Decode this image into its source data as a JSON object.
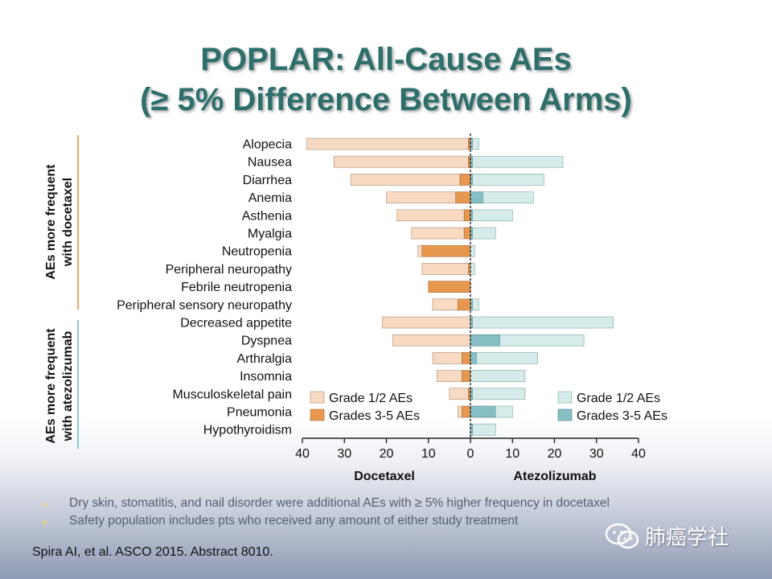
{
  "slide": {
    "title_line1": "POPLAR: All-Cause AEs",
    "title_line2": "(≥ 5% Difference Between Arms)",
    "group_labels": [
      {
        "line1": "AEs more frequent",
        "line2": "with docetaxel"
      },
      {
        "line1": "AEs more frequent",
        "line2": "with atezolizumab"
      }
    ],
    "bullets": [
      "Dry skin, stomatitis, and nail disorder were additional AEs with ≥ 5% higher frequency in docetaxel",
      "Safety population includes pts who received any amount of either study treatment"
    ],
    "citation": "Spira AI, et al. ASCO 2015. Abstract 8010.",
    "watermark": "肺癌学社"
  },
  "colors": {
    "title": "#2e6f6b",
    "doc_grade12": "#f8d9c2",
    "doc_grade35": "#e8984e",
    "atezo_grade12": "#d6ecea",
    "atezo_grade35": "#86bfc4",
    "docetaxel_group_line": "#e8a96a",
    "atezo_group_line": "#8fc9c9"
  },
  "chart_data": {
    "type": "bar",
    "orientation": "horizontal-butterfly",
    "categories": [
      "Alopecia",
      "Nausea",
      "Diarrhea",
      "Anemia",
      "Asthenia",
      "Myalgia",
      "Neutropenia",
      "Peripheral neuropathy",
      "Febrile neutropenia",
      "Peripheral sensory neuropathy",
      "Decreased appetite",
      "Dyspnea",
      "Arthralgia",
      "Insomnia",
      "Musculoskeletal pain",
      "Pneumonia",
      "Hypothyroidism"
    ],
    "left_arm": {
      "name": "Docetaxel",
      "series": [
        {
          "name": "Grade 1/2 AEs",
          "values": [
            38.5,
            32,
            26,
            16.5,
            16,
            12.5,
            1,
            11,
            0,
            6,
            21,
            18.5,
            7,
            6,
            4.5,
            1,
            0
          ]
        },
        {
          "name": "Grades 3-5 AEs",
          "values": [
            0.5,
            0.5,
            2.5,
            3.5,
            1.5,
            1.5,
            11.5,
            0.5,
            10,
            3,
            0,
            0,
            2,
            2,
            0.5,
            2,
            0
          ]
        }
      ]
    },
    "right_arm": {
      "name": "Atezolizumab",
      "series": [
        {
          "name": "Grade 1/2 AEs",
          "values": [
            1.5,
            21.5,
            17,
            12,
            9.5,
            5.5,
            1,
            1,
            0,
            1.5,
            33.5,
            20,
            14.5,
            13,
            12.5,
            4,
            5.5
          ]
        },
        {
          "name": "Grades 3-5 AEs",
          "values": [
            0.5,
            0.5,
            0.5,
            3,
            0.5,
            0.5,
            0,
            0,
            0,
            0.5,
            0.5,
            7,
            1.5,
            0,
            0.5,
            6,
            0.5
          ]
        }
      ]
    },
    "x_ticks_left": [
      40,
      30,
      20,
      10,
      0
    ],
    "x_ticks_right": [
      10,
      20,
      30,
      40
    ],
    "xlim": [
      0,
      40
    ],
    "grid": false,
    "legend_placement": "bottom-inside, one legend per arm"
  }
}
